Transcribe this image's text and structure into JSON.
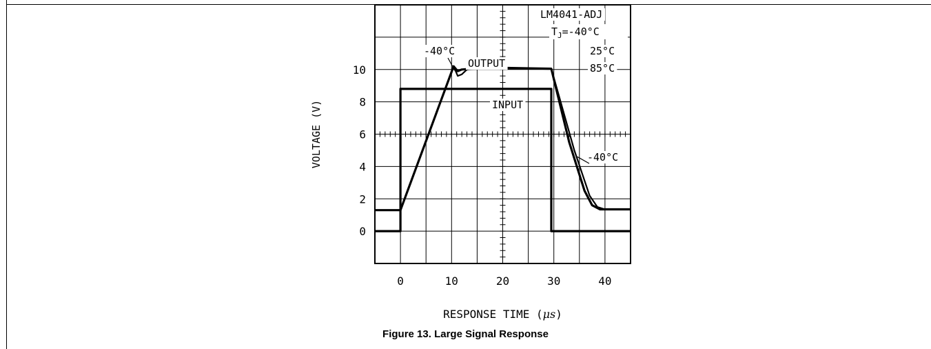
{
  "caption": "Figure 13. Large Signal Response",
  "chart_data": {
    "type": "line",
    "title": "",
    "xlabel": "RESPONSE TIME",
    "xlabel_unit": "μs",
    "ylabel": "VOLTAGE (V)",
    "xlim": [
      -5,
      45
    ],
    "ylim": [
      -2,
      14
    ],
    "x_ticks": [
      "0",
      "10",
      "20",
      "30",
      "40"
    ],
    "y_ticks": [
      "0",
      "2",
      "4",
      "6",
      "8",
      "10"
    ],
    "grid": true,
    "annotations": {
      "device": "LM4041-ADJ",
      "tj_label": "T",
      "tj_sub": "J",
      "tj_value": "=-40°C",
      "temp_25": "25°C",
      "temp_85": "85°C",
      "output_label": "OUTPUT",
      "input_label": "INPUT",
      "minus40_top": "-40°C",
      "minus40_right": "-40°C"
    },
    "series": [
      {
        "name": "INPUT",
        "x": [
          -5,
          0,
          0,
          29.5,
          29.5,
          45
        ],
        "y": [
          0,
          0,
          8.8,
          8.8,
          0,
          0
        ]
      },
      {
        "name": "OUTPUT",
        "x": [
          -5,
          0,
          0,
          10.4,
          11.2,
          12,
          14,
          20,
          29.5,
          33,
          36,
          37.5,
          39,
          45
        ],
        "y": [
          1.3,
          1.3,
          1.3,
          10.2,
          9.9,
          10.0,
          10.05,
          10.1,
          10.05,
          5.5,
          2.5,
          1.6,
          1.35,
          1.35
        ]
      },
      {
        "name": "OUTPUT -40°C",
        "x": [
          10.4,
          11.2,
          12,
          13,
          14,
          29.5,
          34,
          37,
          38.5,
          40
        ],
        "y": [
          10.2,
          9.6,
          9.7,
          10.0,
          10.05,
          10.05,
          5.0,
          2.2,
          1.5,
          1.35
        ]
      }
    ]
  }
}
